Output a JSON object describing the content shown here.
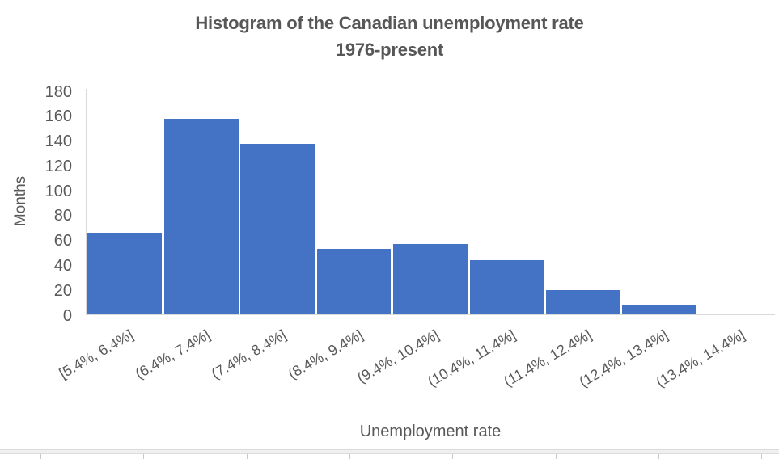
{
  "title": {
    "line1": "Histogram of the Canadian unemployment rate",
    "line2": "1976-present"
  },
  "chart_data": {
    "type": "bar",
    "subtype": "histogram",
    "title": "Histogram of the Canadian unemployment rate 1976-present",
    "categories": [
      "[5.4%, 6.4%]",
      "(6.4%, 7.4%]",
      "(7.4%, 8.4%]",
      "(8.4%, 9.4%]",
      "(9.4%, 10.4%]",
      "(10.4%, 11.4%]",
      "(11.4%, 12.4%]",
      "(12.4%, 13.4%]",
      "(13.4%, 14.4%]"
    ],
    "values": [
      65,
      157,
      137,
      52,
      56,
      43,
      19,
      7,
      0
    ],
    "xlabel": "Unemployment rate",
    "ylabel": "Months",
    "ylim": [
      0,
      180
    ],
    "yticks": [
      0,
      20,
      40,
      60,
      80,
      100,
      120,
      140,
      160,
      180
    ],
    "grid": false,
    "legend": "none",
    "bar_color": "#4472C4"
  },
  "colors": {
    "bar": "#4472C4",
    "title_text": "#575757",
    "axis_text": "#595959",
    "axis_line": "#D9D9D9",
    "sheet_line": "#DADADA"
  }
}
